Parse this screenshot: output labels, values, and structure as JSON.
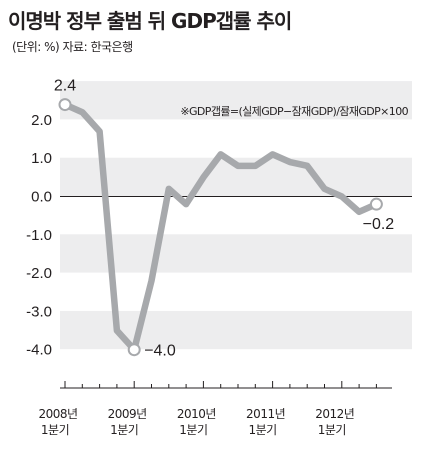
{
  "header": {
    "title": "이명박 정부 출범 뒤 GDP갭률 추이",
    "subtitle": "(단위: %) 자료: 한국은행"
  },
  "chart_data": {
    "type": "line",
    "title": "이명박 정부 출범 뒤 GDP갭률 추이",
    "unit": "(단위: %)",
    "source": "자료: 한국은행",
    "annotation": "※GDP갭률=(실제GDP−잠재GDP)/잠재GDP×100",
    "ylim": [
      -4.2,
      2.6
    ],
    "yticks": [
      2.0,
      1.0,
      0.0,
      -1.0,
      -2.0,
      -3.0,
      -4.0
    ],
    "ytick_labels": [
      "2.0",
      "1.0",
      "0.0",
      "-1.0",
      "-2.0",
      "-3.0",
      "-4.0"
    ],
    "xtick_labels": [
      {
        "year": "2008년",
        "quarter": "1분기"
      },
      {
        "year": "2009년",
        "quarter": "1분기"
      },
      {
        "year": "2010년",
        "quarter": "1분기"
      },
      {
        "year": "2011년",
        "quarter": "1분기"
      },
      {
        "year": "2012년",
        "quarter": "1분기"
      }
    ],
    "x": [
      "2008 Q1",
      "2008 Q2",
      "2008 Q3",
      "2008 Q4",
      "2009 Q1",
      "2009 Q2",
      "2009 Q3",
      "2009 Q4",
      "2010 Q1",
      "2010 Q2",
      "2010 Q3",
      "2010 Q4",
      "2011 Q1",
      "2011 Q2",
      "2011 Q3",
      "2011 Q4",
      "2012 Q1",
      "2012 Q2",
      "2012 Q3"
    ],
    "values": [
      2.4,
      2.2,
      1.7,
      -3.5,
      -4.0,
      -2.2,
      0.2,
      -0.2,
      0.5,
      1.1,
      0.8,
      0.8,
      1.1,
      0.9,
      0.8,
      0.2,
      0.0,
      -0.4,
      -0.2
    ],
    "data_labels": [
      {
        "index": 0,
        "text": "2.4"
      },
      {
        "index": 4,
        "text": "−4.0"
      },
      {
        "index": 18,
        "text": "−0.2"
      }
    ],
    "grid": true,
    "line_color": "#a7a9ac",
    "band_color": "#ededee"
  }
}
